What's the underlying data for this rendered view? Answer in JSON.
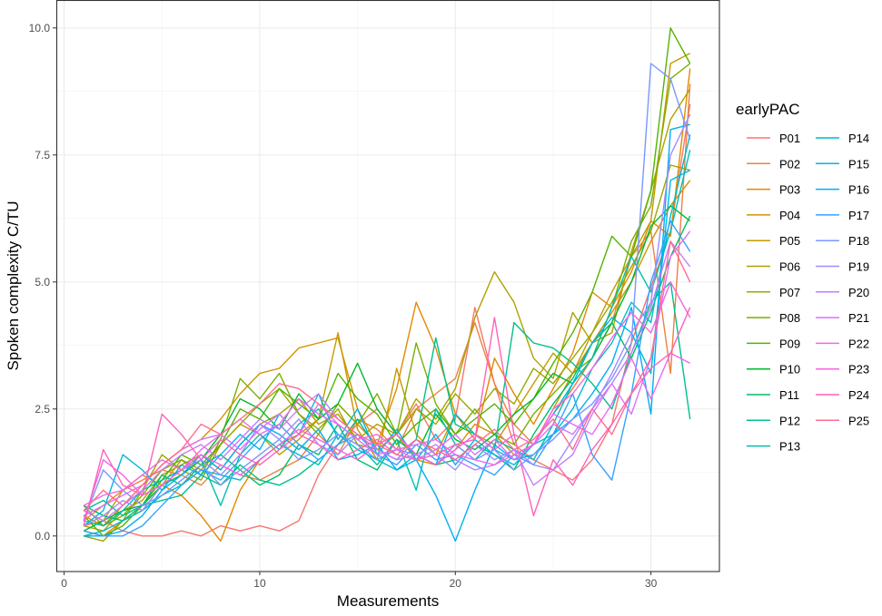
{
  "chart_data": {
    "type": "line",
    "xlabel": "Measurements",
    "ylabel": "Spoken complexity C/TU",
    "xlim": [
      -0.4,
      33.5
    ],
    "ylim": [
      -0.7,
      10.55
    ],
    "x_ticks": [
      0,
      10,
      20,
      30
    ],
    "y_ticks": [
      0,
      2.5,
      5,
      7.5,
      10
    ],
    "y_tick_labels": [
      "0.0",
      "2.5",
      "5.0",
      "7.5",
      "10.0"
    ],
    "grid": true,
    "legend": {
      "title": "earlyPAC",
      "placement": "right"
    },
    "x": [
      1,
      2,
      3,
      4,
      5,
      6,
      7,
      8,
      9,
      10,
      11,
      12,
      13,
      14,
      15,
      16,
      17,
      18,
      19,
      20,
      21,
      22,
      23,
      24,
      25,
      26,
      27,
      28,
      29,
      30,
      31,
      32
    ],
    "series": [
      {
        "name": "P01",
        "color": "#F8766D",
        "values": [
          0.2,
          0.3,
          0.1,
          0,
          0,
          0.1,
          0,
          0.2,
          0.1,
          0.2,
          0.1,
          0.3,
          1.2,
          1.8,
          2.2,
          2.5,
          2.0,
          2.6,
          1.9,
          2.3,
          4.5,
          3.0,
          1.8,
          1.5,
          1.3,
          1.1,
          1.5,
          2.2,
          3.8,
          4.9,
          6.0,
          8.5
        ]
      },
      {
        "name": "P02",
        "color": "#EE8043",
        "values": [
          0.3,
          0.6,
          0.9,
          1.1,
          1.3,
          1.2,
          1.0,
          1.4,
          1.2,
          1.1,
          1.3,
          1.5,
          2.0,
          1.6,
          2.3,
          2.1,
          1.7,
          2.5,
          2.8,
          3.1,
          4.2,
          3.0,
          2.2,
          1.8,
          2.4,
          2.9,
          3.5,
          4.2,
          5.5,
          6.0,
          3.2,
          8.9
        ]
      },
      {
        "name": "P03",
        "color": "#E38900",
        "values": [
          0.1,
          0.0,
          0.3,
          0.5,
          1.0,
          0.8,
          0.4,
          -0.1,
          0.9,
          1.5,
          1.8,
          2.0,
          2.3,
          2.6,
          2.2,
          1.8,
          2.9,
          4.6,
          3.7,
          2.4,
          1.9,
          3.5,
          2.8,
          2.2,
          2.9,
          3.6,
          4.8,
          4.5,
          5.2,
          6.2,
          5.9,
          9.2
        ]
      },
      {
        "name": "P04",
        "color": "#D59100",
        "values": [
          0.4,
          0.2,
          0.6,
          1.0,
          1.4,
          1.7,
          1.9,
          2.3,
          2.8,
          3.2,
          3.3,
          3.7,
          3.8,
          3.9,
          2.5,
          1.8,
          2.0,
          1.5,
          1.4,
          1.7,
          2.2,
          2.0,
          1.6,
          1.8,
          2.5,
          3.2,
          3.8,
          4.4,
          5.0,
          5.8,
          6.5,
          7.0
        ]
      },
      {
        "name": "P05",
        "color": "#C49A00",
        "values": [
          0.5,
          0.3,
          0.9,
          1.2,
          1.0,
          1.5,
          1.3,
          1.8,
          2.2,
          2.0,
          1.6,
          1.9,
          2.3,
          4.0,
          2.1,
          1.5,
          3.3,
          2.0,
          1.6,
          2.4,
          2.0,
          1.8,
          2.4,
          3.0,
          3.6,
          3.2,
          4.0,
          4.8,
          5.5,
          6.2,
          9.3,
          9.5
        ]
      },
      {
        "name": "P06",
        "color": "#B0A000",
        "values": [
          0.2,
          0.1,
          0.5,
          0.7,
          1.2,
          1.4,
          1.6,
          1.3,
          1.8,
          2.2,
          2.4,
          2.7,
          2.2,
          2.4,
          1.9,
          2.2,
          2.0,
          2.7,
          2.3,
          2.9,
          4.3,
          5.2,
          4.6,
          3.5,
          3.1,
          4.4,
          3.8,
          4.0,
          5.6,
          6.8,
          8.2,
          8.8
        ]
      },
      {
        "name": "P07",
        "color": "#99A800",
        "values": [
          0.0,
          -0.1,
          0.3,
          0.9,
          1.6,
          1.3,
          1.1,
          1.8,
          2.2,
          2.6,
          2.9,
          2.4,
          2.1,
          2.5,
          1.8,
          1.7,
          2.0,
          2.5,
          2.2,
          2.8,
          2.4,
          2.9,
          2.6,
          3.3,
          3.0,
          3.5,
          4.0,
          4.6,
          5.3,
          6.0,
          7.3,
          7.2
        ]
      },
      {
        "name": "P08",
        "color": "#7CAE00",
        "values": [
          0.6,
          0.2,
          0.4,
          0.8,
          1.3,
          1.5,
          1.2,
          1.9,
          3.1,
          2.7,
          3.2,
          2.4,
          2.0,
          2.6,
          2.2,
          2.8,
          2.0,
          3.8,
          2.6,
          2.0,
          2.5,
          2.0,
          1.8,
          2.4,
          2.8,
          3.2,
          3.5,
          4.5,
          5.8,
          6.5,
          9.0,
          9.3
        ]
      },
      {
        "name": "P09",
        "color": "#53B400",
        "values": [
          0.4,
          0.0,
          0.2,
          0.6,
          1.1,
          1.6,
          1.4,
          1.8,
          2.5,
          2.3,
          2.9,
          2.6,
          2.3,
          3.2,
          2.7,
          2.4,
          1.8,
          2.2,
          2.5,
          2.0,
          2.3,
          2.6,
          2.2,
          2.7,
          3.4,
          4.0,
          4.8,
          5.9,
          5.5,
          6.8,
          10.0,
          9.3
        ]
      },
      {
        "name": "P10",
        "color": "#00B92E",
        "values": [
          0.1,
          0.3,
          0.5,
          0.6,
          1.0,
          1.2,
          1.5,
          2.0,
          2.7,
          2.5,
          2.1,
          2.8,
          2.3,
          2.6,
          3.4,
          2.5,
          2.0,
          1.6,
          2.4,
          1.9,
          1.7,
          2.0,
          2.4,
          2.7,
          3.2,
          3.0,
          3.5,
          4.2,
          5.0,
          6.1,
          6.5,
          6.2
        ]
      },
      {
        "name": "P11",
        "color": "#00BD66",
        "values": [
          0.6,
          0.4,
          0.3,
          0.6,
          1.2,
          1.0,
          1.4,
          1.6,
          1.3,
          1.0,
          1.2,
          1.8,
          1.6,
          2.2,
          1.5,
          1.3,
          1.9,
          1.6,
          1.4,
          1.5,
          1.8,
          1.6,
          1.3,
          2.0,
          2.6,
          3.1,
          3.8,
          4.2,
          3.5,
          4.4,
          5.5,
          6.3
        ]
      },
      {
        "name": "P12",
        "color": "#00C08D",
        "values": [
          0.5,
          0.7,
          0.4,
          0.6,
          0.7,
          0.8,
          1.2,
          1.0,
          1.4,
          1.1,
          1.0,
          1.2,
          1.5,
          1.8,
          2.3,
          1.7,
          1.5,
          1.9,
          3.9,
          2.2,
          2.0,
          1.7,
          4.2,
          3.8,
          3.7,
          3.4,
          3.0,
          2.5,
          3.6,
          4.6,
          5.0,
          2.3
        ]
      },
      {
        "name": "P13",
        "color": "#00C0B0",
        "values": [
          0.3,
          0.2,
          0.5,
          0.9,
          1.1,
          1.3,
          1.5,
          0.6,
          1.6,
          2.0,
          1.7,
          2.2,
          2.5,
          2.0,
          1.8,
          1.4,
          1.9,
          0.9,
          2.5,
          1.8,
          1.5,
          1.9,
          1.7,
          1.5,
          2.2,
          3.0,
          3.5,
          4.5,
          5.5,
          4.8,
          6.0,
          7.6
        ]
      },
      {
        "name": "P14",
        "color": "#00BCCC",
        "values": [
          0.0,
          0.1,
          0.3,
          0.5,
          0.8,
          1.0,
          1.3,
          1.2,
          1.1,
          1.5,
          1.8,
          1.6,
          1.4,
          2.0,
          1.7,
          1.5,
          1.3,
          1.6,
          1.4,
          2.4,
          2.0,
          1.7,
          1.5,
          1.8,
          2.0,
          2.5,
          3.3,
          3.8,
          4.6,
          4.2,
          6.3,
          7.9
        ]
      },
      {
        "name": "P15",
        "color": "#00B6E5",
        "values": [
          0.2,
          0.5,
          1.6,
          1.3,
          0.9,
          1.4,
          1.2,
          1.6,
          2.0,
          1.7,
          2.4,
          2.0,
          2.8,
          1.9,
          2.5,
          1.6,
          2.1,
          1.5,
          2.0,
          1.4,
          1.9,
          1.6,
          1.4,
          1.8,
          2.4,
          3.0,
          3.8,
          4.3,
          4.0,
          3.2,
          7.0,
          7.2
        ]
      },
      {
        "name": "P16",
        "color": "#00ADF8",
        "values": [
          0.0,
          0.0,
          0.1,
          0.4,
          0.9,
          1.2,
          1.6,
          1.3,
          1.8,
          2.2,
          2.0,
          1.7,
          2.1,
          1.5,
          1.6,
          1.8,
          1.3,
          1.5,
          0.8,
          -0.1,
          0.9,
          1.8,
          1.5,
          1.6,
          2.0,
          2.3,
          2.8,
          3.4,
          4.5,
          2.4,
          8.0,
          8.1
        ]
      },
      {
        "name": "P17",
        "color": "#35A2FF",
        "values": [
          0.1,
          0.0,
          0.0,
          0.2,
          0.6,
          1.0,
          1.3,
          1.1,
          1.5,
          1.9,
          2.2,
          1.8,
          1.5,
          1.8,
          2.0,
          1.6,
          1.4,
          1.8,
          1.5,
          1.6,
          1.4,
          1.2,
          1.6,
          1.4,
          2.0,
          2.8,
          1.6,
          1.1,
          2.8,
          5.0,
          6.2,
          5.6
        ]
      },
      {
        "name": "P18",
        "color": "#7997FF",
        "values": [
          0.3,
          1.3,
          0.9,
          0.6,
          0.8,
          1.1,
          1.4,
          1.0,
          1.3,
          1.6,
          1.9,
          1.5,
          1.7,
          2.0,
          1.8,
          1.5,
          1.7,
          1.6,
          1.4,
          1.8,
          1.5,
          1.7,
          1.3,
          1.6,
          1.9,
          2.3,
          2.6,
          3.1,
          3.8,
          9.3,
          9.0,
          7.8
        ]
      },
      {
        "name": "P19",
        "color": "#9F8CFF",
        "values": [
          0.2,
          0.4,
          0.7,
          0.5,
          1.0,
          1.3,
          1.5,
          1.2,
          1.6,
          2.2,
          1.9,
          2.3,
          1.8,
          1.6,
          2.0,
          1.7,
          1.5,
          1.9,
          1.6,
          1.3,
          1.8,
          1.5,
          1.7,
          1.4,
          1.3,
          1.9,
          2.5,
          3.2,
          4.0,
          4.6,
          7.5,
          8.3
        ]
      },
      {
        "name": "P20",
        "color": "#C27DFF",
        "values": [
          0.5,
          0.3,
          0.6,
          0.9,
          1.3,
          1.6,
          1.8,
          1.5,
          1.9,
          2.3,
          2.1,
          2.5,
          2.8,
          2.3,
          2.0,
          1.7,
          1.5,
          1.6,
          1.8,
          1.5,
          1.3,
          1.4,
          1.7,
          1.0,
          1.3,
          1.6,
          2.4,
          3.0,
          3.6,
          4.5,
          5.8,
          5.3
        ]
      },
      {
        "name": "P21",
        "color": "#DC71FA",
        "values": [
          0.4,
          0.6,
          0.8,
          1.0,
          1.4,
          1.7,
          1.9,
          2.0,
          1.7,
          2.1,
          2.4,
          2.0,
          2.6,
          2.2,
          1.9,
          1.6,
          1.7,
          1.5,
          1.7,
          2.0,
          1.6,
          1.9,
          1.5,
          1.8,
          2.2,
          2.0,
          2.5,
          3.0,
          2.4,
          3.5,
          5.5,
          6.0
        ]
      },
      {
        "name": "P22",
        "color": "#EC69EF",
        "values": [
          0.6,
          0.8,
          0.9,
          1.2,
          1.5,
          1.3,
          1.7,
          2.0,
          2.3,
          2.0,
          2.2,
          2.7,
          2.4,
          2.2,
          1.9,
          2.0,
          1.7,
          1.8,
          1.9,
          1.6,
          1.5,
          1.4,
          1.6,
          1.8,
          2.4,
          2.2,
          2.0,
          2.6,
          3.5,
          2.7,
          3.6,
          3.4
        ]
      },
      {
        "name": "P23",
        "color": "#F763E0",
        "values": [
          0.3,
          1.5,
          1.2,
          0.8,
          1.0,
          1.3,
          1.6,
          1.4,
          1.2,
          1.5,
          1.8,
          2.1,
          1.9,
          1.7,
          1.5,
          1.8,
          2.0,
          1.6,
          1.4,
          1.7,
          2.0,
          1.7,
          2.0,
          1.8,
          2.5,
          2.8,
          3.3,
          3.9,
          4.4,
          4.0,
          5.0,
          4.3
        ]
      },
      {
        "name": "P24",
        "color": "#FF62BC",
        "values": [
          0.2,
          1.7,
          1.0,
          0.8,
          2.4,
          2.0,
          1.5,
          1.9,
          1.6,
          1.4,
          1.7,
          2.0,
          1.8,
          1.5,
          1.7,
          1.9,
          1.6,
          1.5,
          1.6,
          1.8,
          1.9,
          4.3,
          2.0,
          0.4,
          1.5,
          1.0,
          1.7,
          2.2,
          2.8,
          3.3,
          3.6,
          4.5
        ]
      },
      {
        "name": "P25",
        "color": "#FF6C91",
        "values": [
          0.5,
          0.9,
          0.6,
          1.0,
          1.4,
          1.7,
          2.2,
          2.0,
          2.3,
          2.6,
          3.0,
          2.9,
          2.6,
          2.3,
          2.0,
          1.8,
          1.6,
          1.9,
          1.7,
          1.5,
          1.8,
          2.1,
          1.7,
          1.9,
          2.3,
          1.7,
          2.5,
          2.0,
          2.8,
          3.5,
          5.8,
          5.0
        ]
      }
    ]
  }
}
